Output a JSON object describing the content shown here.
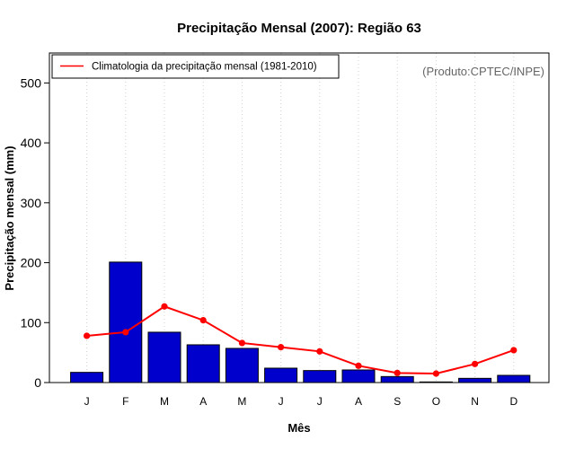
{
  "chart_data": {
    "type": "bar",
    "title": "Precipitação Mensal (2007): Região 63",
    "xlabel": "Mês",
    "ylabel": "Precipitação mensal (mm)",
    "ylim": [
      0,
      550
    ],
    "yticks": [
      0,
      100,
      200,
      300,
      400,
      500
    ],
    "categories": [
      "J",
      "F",
      "M",
      "A",
      "M",
      "J",
      "J",
      "A",
      "S",
      "O",
      "N",
      "D"
    ],
    "series": [
      {
        "name": "Precipitação mensal 2007",
        "type": "bar",
        "color": "#0000cc",
        "values": [
          17,
          201,
          84,
          63,
          57,
          24,
          20,
          21,
          10,
          1,
          7,
          12
        ]
      },
      {
        "name": "Climatologia da precipitação mensal (1981-2010)",
        "type": "line",
        "color": "#ff0000",
        "values": [
          78,
          84,
          127,
          104,
          66,
          59,
          52,
          28,
          16,
          15,
          31,
          54
        ]
      }
    ],
    "legend": {
      "position": "top-left",
      "label": "Climatologia da precipitação mensal (1981-2010)"
    },
    "annotation": "(Produto:CPTEC/INPE)",
    "grid": {
      "vertical": true,
      "style": "dotted"
    }
  }
}
